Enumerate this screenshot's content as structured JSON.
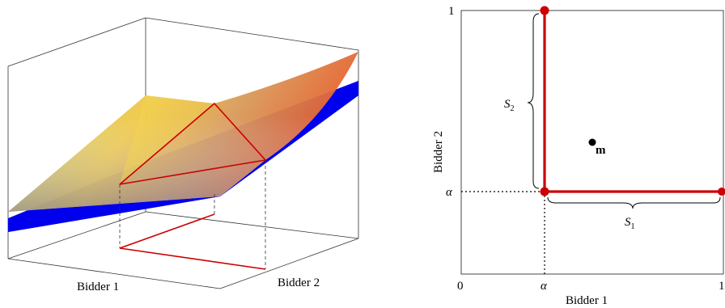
{
  "left_figure": {
    "x_axis_label": "Bidder 1",
    "y_axis_label": "Bidder 2"
  },
  "right_figure": {
    "x_axis_label": "Bidder 1",
    "y_axis_label": "Bidder 2",
    "x_tick_0": "0",
    "x_tick_alpha": "α",
    "x_tick_1": "1",
    "y_tick_1": "1",
    "y_tick_alpha": "α",
    "brace_s1": {
      "base": "S",
      "sub": "1"
    },
    "brace_s2": {
      "base": "S",
      "sub": "2"
    },
    "point_label": "m"
  },
  "colors": {
    "red": "#cc0000",
    "blue": "#0000ee",
    "surface_yellow": "#f2c830",
    "surface_orange": "#e8602a",
    "surface_gray": "#8a8aa8"
  }
}
